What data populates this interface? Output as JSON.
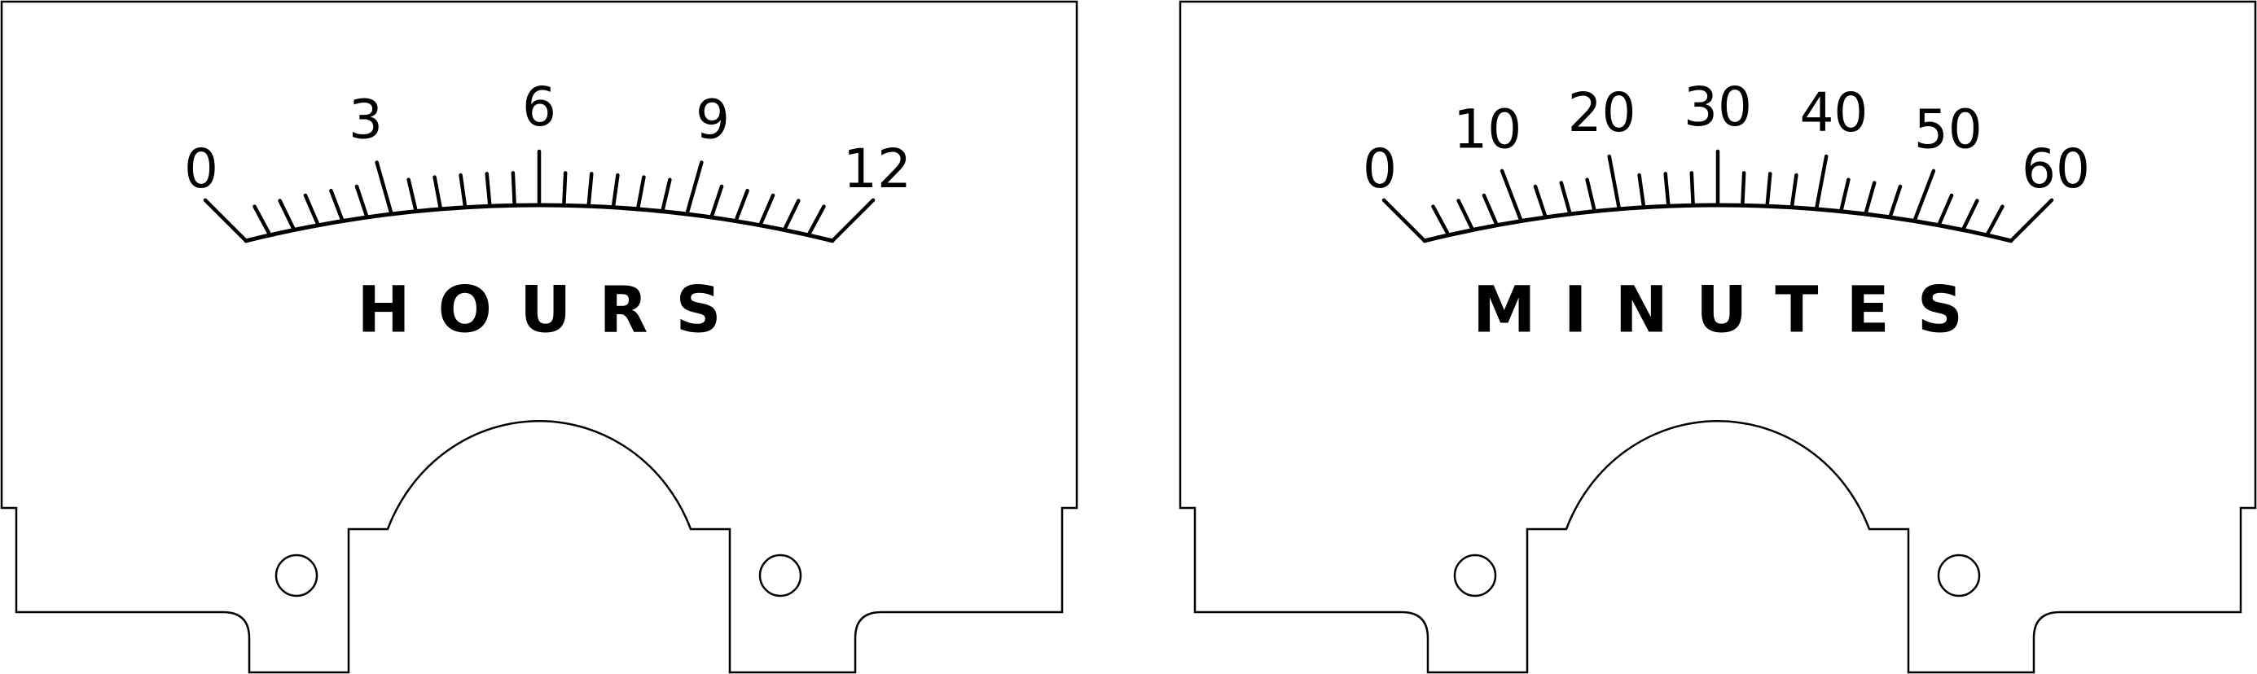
{
  "dials": [
    {
      "id": "hours",
      "title": "HOURS",
      "max": 12,
      "labeled_values": [
        0,
        3,
        6,
        9,
        12
      ],
      "labels": [
        "0",
        "3",
        "6",
        "9",
        "12"
      ],
      "minor_divisions": 24
    },
    {
      "id": "minutes",
      "title": "MINUTES",
      "max": 60,
      "labeled_values": [
        0,
        10,
        20,
        30,
        40,
        50,
        60
      ],
      "labels": [
        "0",
        "10",
        "20",
        "30",
        "40",
        "50",
        "60"
      ],
      "minor_divisions": 24
    }
  ],
  "colors": {
    "ink": "#000000",
    "paper": "#ffffff"
  }
}
